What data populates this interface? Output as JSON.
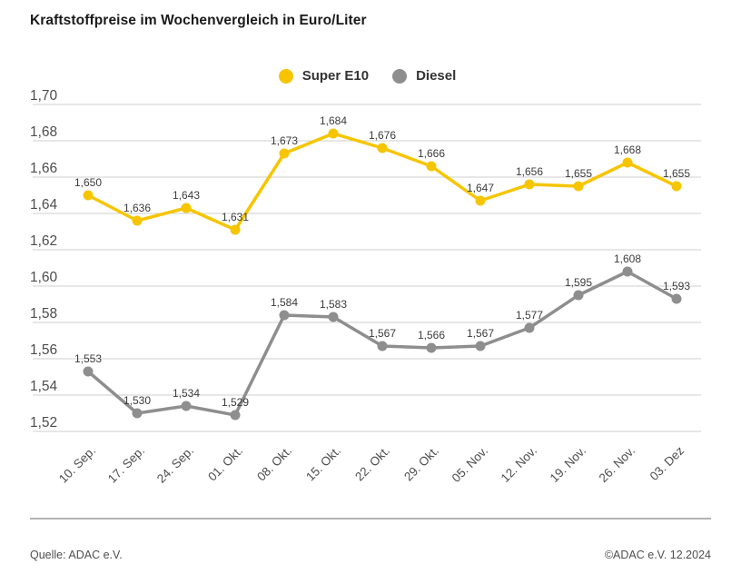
{
  "page": {
    "title": "Kraftstoffpreise im Wochenvergleich in Euro/Liter"
  },
  "legend": [
    {
      "label": "Super E10",
      "color": "#f6c500"
    },
    {
      "label": "Diesel",
      "color": "#8e8e8e"
    }
  ],
  "footer": {
    "source": "Quelle: ADAC e.V.",
    "copyright": "©ADAC e.V. 12.2024"
  },
  "chart_data": {
    "type": "line",
    "title": "Kraftstoffpreise im Wochenvergleich in Euro/Liter",
    "categories": [
      "10. Sep.",
      "17. Sep.",
      "24. Sep.",
      "01. Okt.",
      "08. Okt.",
      "15. Okt.",
      "22. Okt.",
      "29. Okt.",
      "05. Nov.",
      "12. Nov.",
      "19. Nov.",
      "26. Nov.",
      "03. Dez"
    ],
    "series": [
      {
        "name": "Super E10",
        "color": "#f6c500",
        "values": [
          1.65,
          1.636,
          1.643,
          1.631,
          1.673,
          1.684,
          1.676,
          1.666,
          1.647,
          1.656,
          1.655,
          1.668,
          1.655
        ]
      },
      {
        "name": "Diesel",
        "color": "#8e8e8e",
        "values": [
          1.553,
          1.53,
          1.534,
          1.529,
          1.584,
          1.583,
          1.567,
          1.566,
          1.567,
          1.577,
          1.595,
          1.608,
          1.593
        ]
      }
    ],
    "ylabel": "Euro/Liter",
    "ylim": [
      1.52,
      1.7
    ],
    "ytick_step": 0.02,
    "decimal_separator": ",",
    "grid": true,
    "legend_position": "top-center",
    "value_labels": true,
    "colors": {
      "grid_line": "#cfcfcf",
      "axis_text": "#4d4d4d",
      "value_label_text": "#3c3c3c",
      "separator": "#b3b3b3"
    }
  }
}
